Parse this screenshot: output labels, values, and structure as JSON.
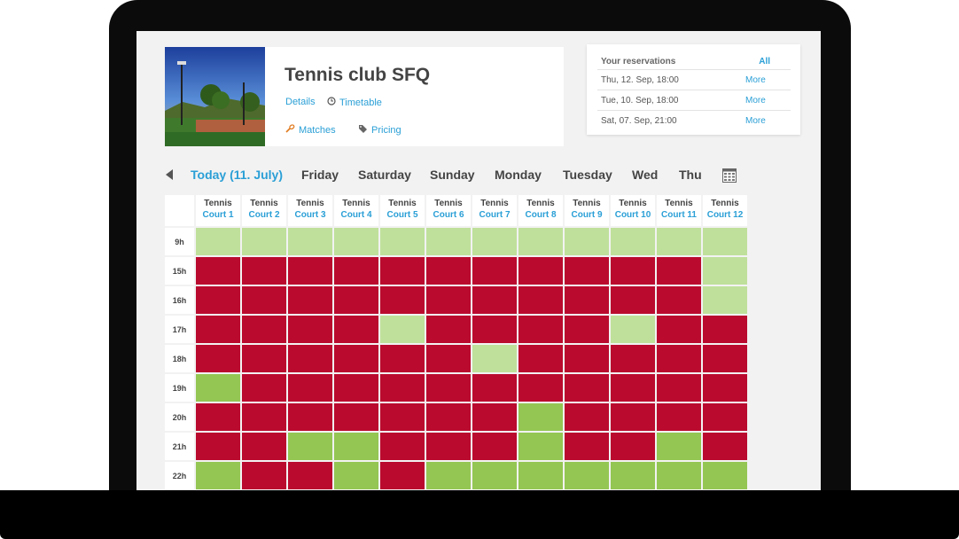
{
  "club": {
    "name": "Tennis club SFQ",
    "links": {
      "details": "Details",
      "timetable": "Timetable",
      "matches": "Matches",
      "pricing": "Pricing"
    }
  },
  "reservations": {
    "heading": "Your reservations",
    "all_label": "All",
    "items": [
      {
        "date": "Thu, 12. Sep, 18:00",
        "action": "More"
      },
      {
        "date": "Tue, 10. Sep, 18:00",
        "action": "More"
      },
      {
        "date": "Sat, 07. Sep, 21:00",
        "action": "More"
      }
    ]
  },
  "day_nav": [
    "Today (11. July)",
    "Friday",
    "Saturday",
    "Sunday",
    "Monday",
    "Tuesday",
    "Wed",
    "Thu"
  ],
  "courts": [
    {
      "sport": "Tennis",
      "name": "Court 1"
    },
    {
      "sport": "Tennis",
      "name": "Court 2"
    },
    {
      "sport": "Tennis",
      "name": "Court 3"
    },
    {
      "sport": "Tennis",
      "name": "Court 4"
    },
    {
      "sport": "Tennis",
      "name": "Court 5"
    },
    {
      "sport": "Tennis",
      "name": "Court 6"
    },
    {
      "sport": "Tennis",
      "name": "Court 7"
    },
    {
      "sport": "Tennis",
      "name": "Court 8"
    },
    {
      "sport": "Tennis",
      "name": "Court 9"
    },
    {
      "sport": "Tennis",
      "name": "Court 10"
    },
    {
      "sport": "Tennis",
      "name": "Court 11"
    },
    {
      "sport": "Tennis",
      "name": "Court 12"
    }
  ],
  "hours": [
    "9h",
    "15h",
    "16h",
    "17h",
    "18h",
    "19h",
    "20h",
    "21h",
    "22h"
  ],
  "slot_legend": {
    "b": "#ba0a2e",
    "l": "#bfe09b",
    "g": "#94c653"
  },
  "slots": [
    "llllllllllll",
    "bbbbbbbbbbbl",
    "bbbbbbbbbbbl",
    "bbbblbbbblbb",
    "bbbbbblbbbbb",
    "gbbbbbbbbbbb",
    "bbbbbbbgbbbb",
    "bbggbbbgbbgb",
    "gbbgbggggggg"
  ],
  "icons": {
    "prev": "chevron-left-icon",
    "calendar": "calendar-icon",
    "clock": "clock-icon",
    "matches": "racket-icon",
    "pricing": "tag-icon"
  },
  "colors": {
    "accent": "#2a9fd6",
    "booked": "#ba0a2e",
    "free": "#bfe09b",
    "free_strong": "#94c653"
  }
}
